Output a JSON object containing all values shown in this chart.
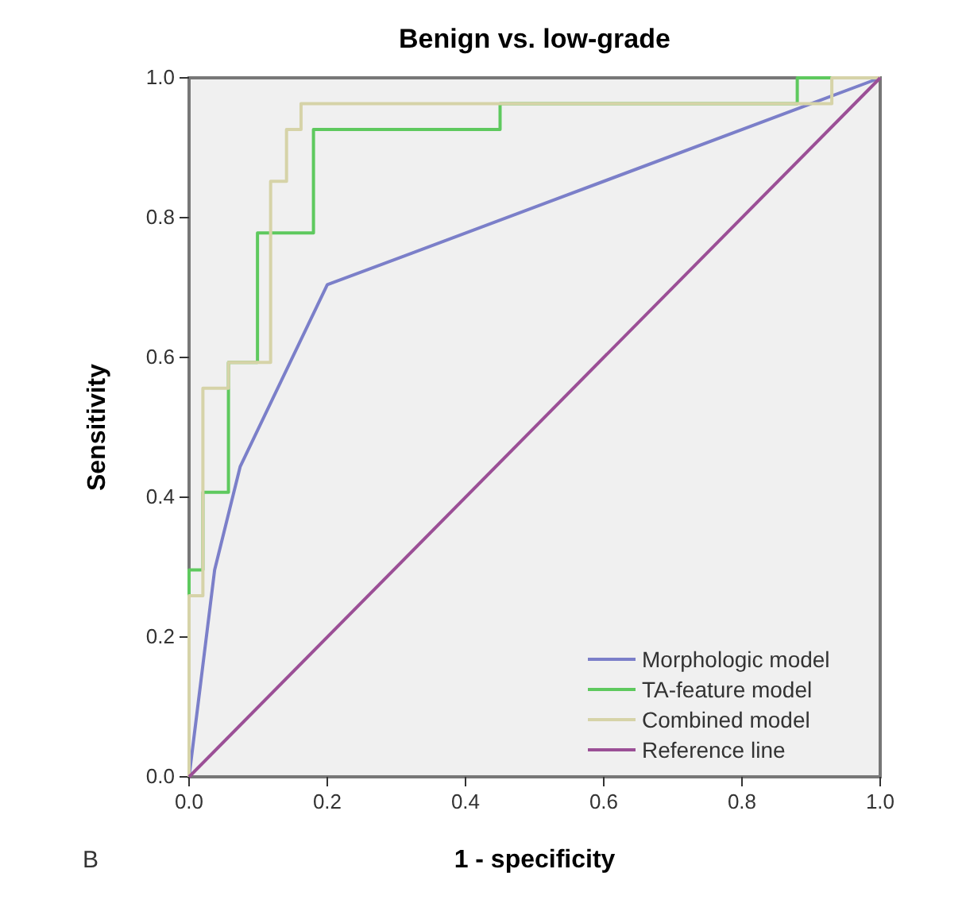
{
  "chart_data": {
    "type": "line",
    "title": "Benign vs. low-grade",
    "xlabel": "1 - specificity",
    "ylabel": "Sensitivity",
    "annotations": [
      "B"
    ],
    "xlim": [
      0,
      1
    ],
    "ylim": [
      0,
      1
    ],
    "xticks": [
      {
        "value": 0,
        "label": "0.0"
      },
      {
        "value": 0.2,
        "label": "0.2"
      },
      {
        "value": 0.4,
        "label": "0.4"
      },
      {
        "value": 0.6,
        "label": "0.6"
      },
      {
        "value": 0.8,
        "label": "0.8"
      },
      {
        "value": 1,
        "label": "1.0"
      }
    ],
    "yticks": [
      {
        "value": 0,
        "label": "0.0"
      },
      {
        "value": 0.2,
        "label": "0.2"
      },
      {
        "value": 0.4,
        "label": "0.4"
      },
      {
        "value": 0.6,
        "label": "0.6"
      },
      {
        "value": 0.8,
        "label": "0.8"
      },
      {
        "value": 1,
        "label": "1.0"
      }
    ],
    "grid": false,
    "legend": "bottom right",
    "marker": "none",
    "line_style": "solid",
    "series": [
      {
        "name": "Morphologic model",
        "color": "#7b7fc9",
        "x": [
          0,
          0.037,
          0.074,
          0.2,
          1
        ],
        "values": [
          0,
          0.296,
          0.444,
          0.704,
          1
        ]
      },
      {
        "name": "TA-feature model",
        "color": "#5ec95e",
        "x": [
          0,
          0,
          0.02,
          0.02,
          0.057,
          0.057,
          0.099,
          0.099,
          0.18,
          0.18,
          0.45,
          0.45,
          0.88,
          0.88,
          1
        ],
        "values": [
          0,
          0.296,
          0.296,
          0.407,
          0.407,
          0.593,
          0.593,
          0.778,
          0.778,
          0.926,
          0.926,
          0.963,
          0.963,
          1,
          1
        ]
      },
      {
        "name": "Combined model",
        "color": "#d6d3a8",
        "x": [
          0,
          0,
          0.02,
          0.02,
          0.057,
          0.057,
          0.118,
          0.118,
          0.141,
          0.141,
          0.162,
          0.162,
          0.93,
          0.93,
          1
        ],
        "values": [
          0,
          0.259,
          0.259,
          0.556,
          0.556,
          0.593,
          0.593,
          0.852,
          0.852,
          0.926,
          0.926,
          0.963,
          0.963,
          1,
          1
        ]
      },
      {
        "name": "Reference line",
        "color": "#9b4f96",
        "x": [
          0,
          1
        ],
        "values": [
          0,
          1
        ]
      }
    ]
  }
}
